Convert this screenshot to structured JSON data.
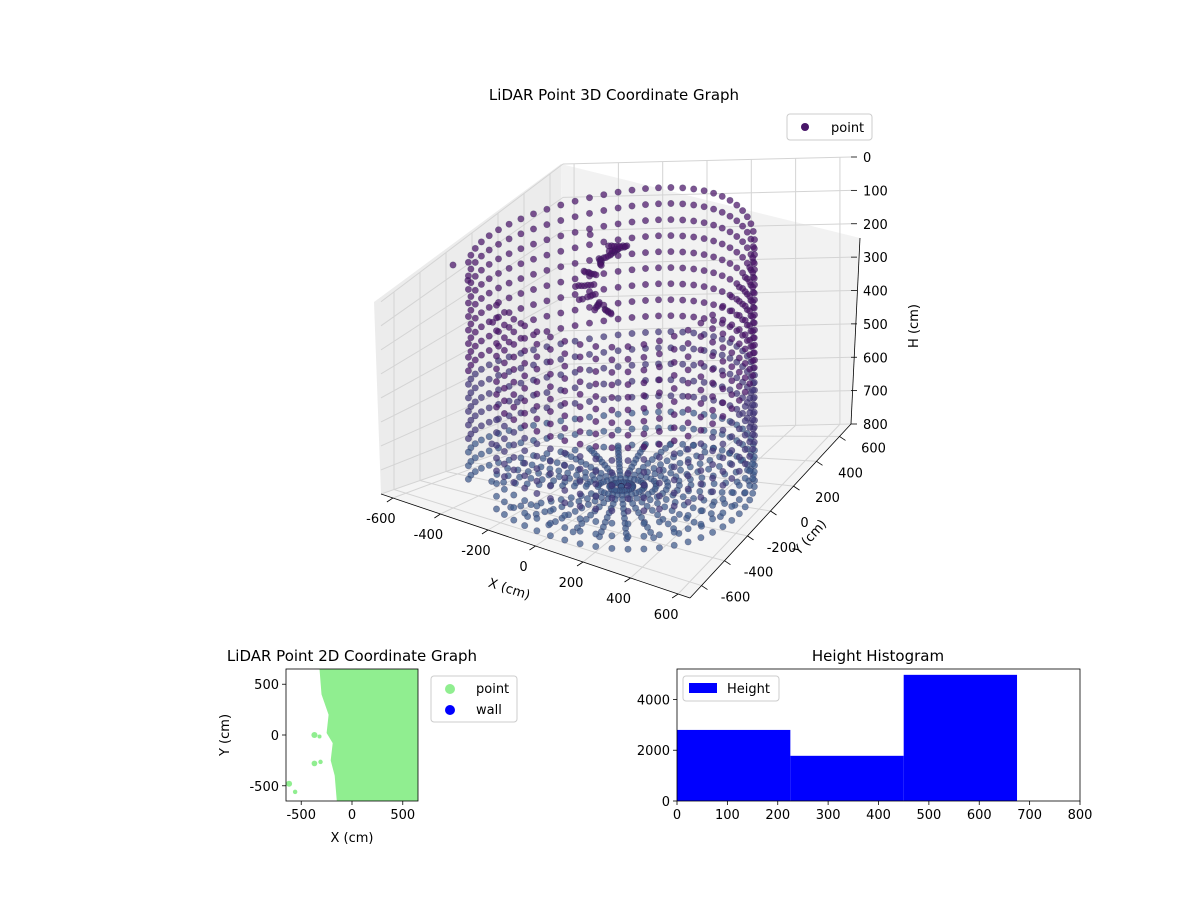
{
  "chart_data": [
    {
      "type": "scatter",
      "projection": "3d",
      "title": "LiDAR Point 3D Coordinate Graph",
      "xlabel": "X (cm)",
      "ylabel": "Y (cm)",
      "zlabel": "H (cm)",
      "xlim": [
        -650,
        650
      ],
      "ylim": [
        -700,
        700
      ],
      "zlim": [
        0,
        800
      ],
      "z_inverted": true,
      "xticks": [
        -600,
        -400,
        -200,
        0,
        200,
        400,
        600
      ],
      "yticks": [
        -600,
        -400,
        -200,
        0,
        200,
        400,
        600
      ],
      "zticks": [
        0,
        100,
        200,
        300,
        400,
        500,
        600,
        700,
        800
      ],
      "grid": true,
      "legend": {
        "position": "top-right",
        "entries": [
          {
            "label": "point",
            "color": "#481668"
          }
        ]
      },
      "colors": {
        "low": "#3b5a8c",
        "high": "#4a0f66"
      },
      "series": [
        {
          "name": "point",
          "description_points": "ring wall radius ~500-560 cm, from z 0 to 800, arc from azimuth ~-100deg to ~220deg; inner floor disk; clutter near (-250,300)",
          "ring_radius": 540,
          "arc_start_deg": -120,
          "arc_end_deg": 205,
          "z_range": [
            0,
            800
          ]
        }
      ]
    },
    {
      "type": "scatter",
      "title": "LiDAR Point 2D Coordinate Graph",
      "xlabel": "X (cm)",
      "ylabel": "Y (cm)",
      "xlim": [
        -650,
        650
      ],
      "ylim": [
        -650,
        650
      ],
      "xticks": [
        -500,
        0,
        500
      ],
      "yticks": [
        -500,
        0,
        500
      ],
      "legend": {
        "position": "outside-right",
        "entries": [
          {
            "label": "point",
            "color": "#90ee90"
          },
          {
            "label": "wall",
            "color": "#0000ff"
          }
        ]
      },
      "series": [
        {
          "name": "point",
          "color": "#90ee90"
        },
        {
          "name": "wall",
          "color": "#0000ff"
        }
      ],
      "region_polygon": [
        [
          -280,
          650
        ],
        [
          650,
          650
        ],
        [
          650,
          -650
        ],
        [
          -150,
          -650
        ],
        [
          -170,
          -400
        ],
        [
          -210,
          -250
        ],
        [
          -190,
          -80
        ],
        [
          -250,
          20
        ],
        [
          -230,
          200
        ],
        [
          -300,
          400
        ],
        [
          -320,
          650
        ]
      ],
      "blobs": [
        [
          -370,
          0,
          30
        ],
        [
          -320,
          -15,
          20
        ],
        [
          -370,
          -280,
          28
        ],
        [
          -310,
          -265,
          22
        ],
        [
          -620,
          -480,
          30
        ],
        [
          -560,
          -560,
          22
        ]
      ]
    },
    {
      "type": "bar",
      "title": "Height Histogram",
      "xlabel": "",
      "ylabel": "",
      "xlim": [
        0,
        800
      ],
      "ylim": [
        0,
        5200
      ],
      "xticks": [
        0,
        100,
        200,
        300,
        400,
        500,
        600,
        700,
        800
      ],
      "yticks": [
        0,
        2000,
        4000
      ],
      "legend": {
        "position": "top-left",
        "entries": [
          {
            "label": "Height",
            "color": "#0000ff"
          }
        ]
      },
      "color": "#0000ff",
      "bins": [
        {
          "x0": 0,
          "x1": 225,
          "value": 2800
        },
        {
          "x0": 225,
          "x1": 450,
          "value": 1780
        },
        {
          "x0": 450,
          "x1": 675,
          "value": 4970
        }
      ]
    }
  ]
}
